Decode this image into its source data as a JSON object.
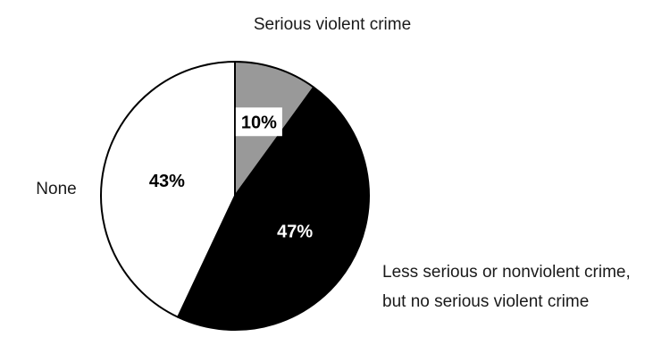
{
  "chart_data": {
    "type": "pie",
    "title": "",
    "slices": [
      {
        "category_lines": [
          "Serious violent crime"
        ],
        "value": 10,
        "value_label": "10%",
        "fill": "#999999",
        "label_color": "#000000",
        "label_box": "#ffffff"
      },
      {
        "category_lines": [
          "Less serious or nonviolent crime,",
          "but no serious violent crime"
        ],
        "value": 47,
        "value_label": "47%",
        "fill": "#000000",
        "label_color": "#ffffff",
        "label_box": ""
      },
      {
        "category_lines": [
          "None"
        ],
        "value": 43,
        "value_label": "43%",
        "fill": "#ffffff",
        "label_color": "#000000",
        "label_box": ""
      }
    ],
    "start_angle": "12 o'clock",
    "direction": "clockwise",
    "legend": "none"
  }
}
